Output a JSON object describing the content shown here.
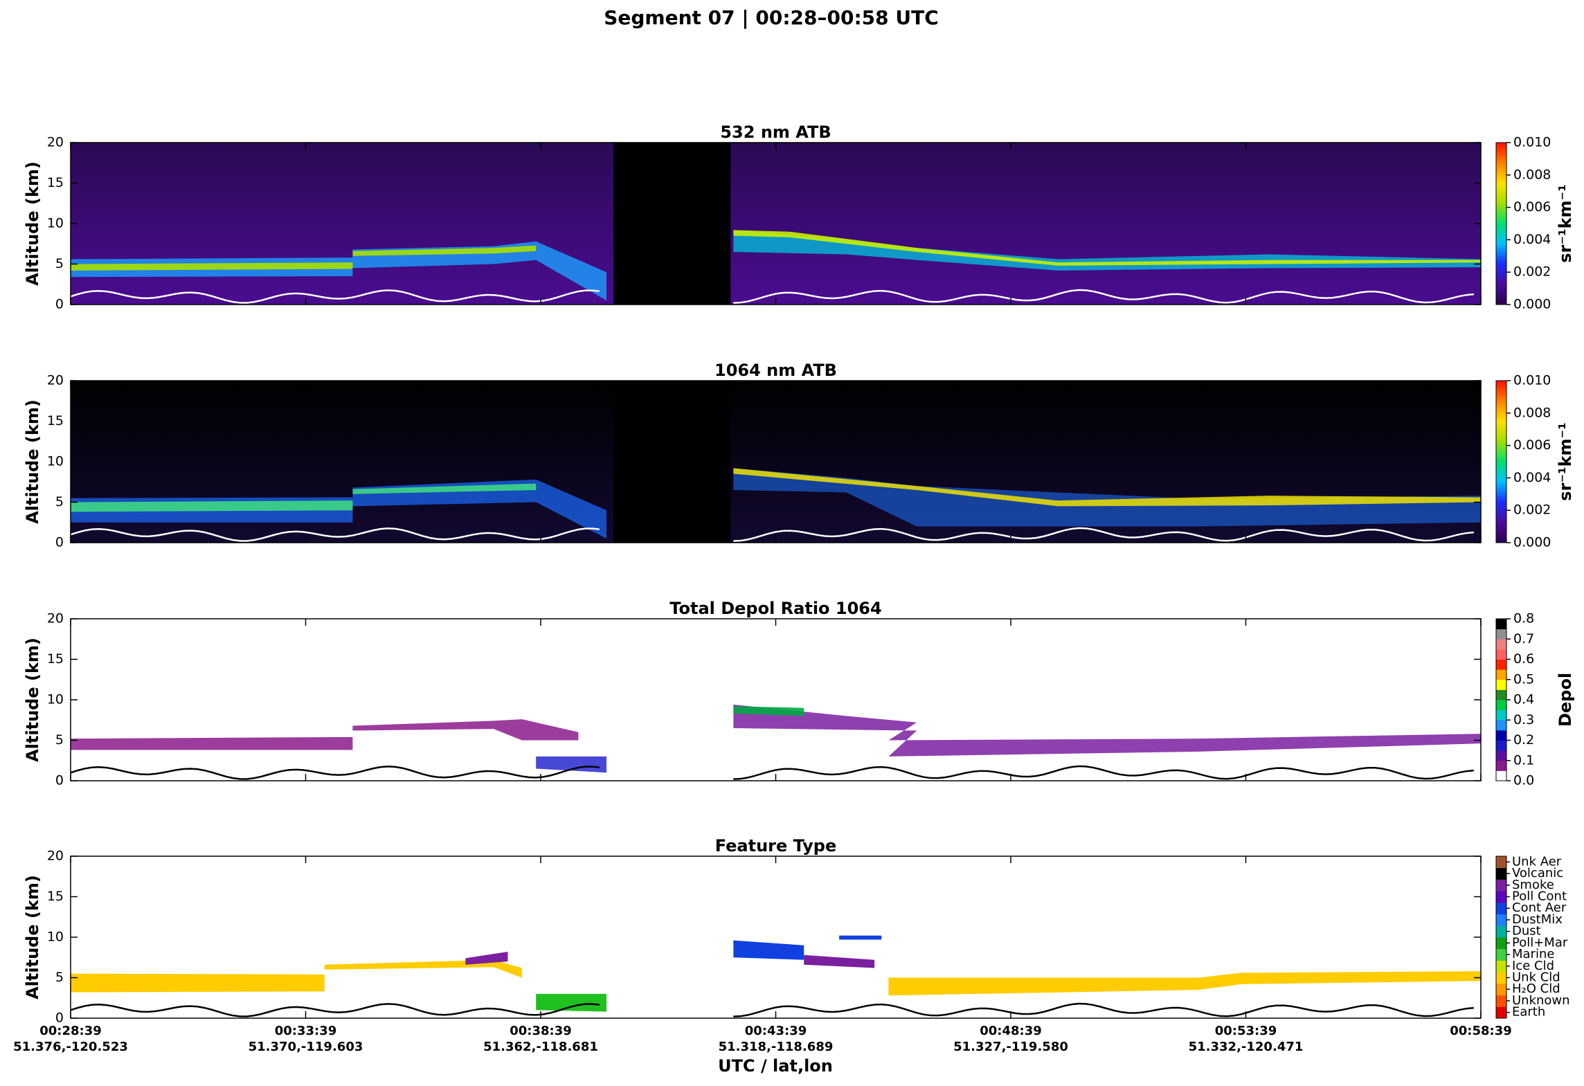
{
  "title": "Segment 07  |  00:28–00:58 UTC",
  "x_axis_label": "UTC / lat,lon",
  "x_tick_labels": [
    {
      "time": "00:28:39",
      "latlon": "51.376,-120.523"
    },
    {
      "time": "00:33:39",
      "latlon": "51.370,-119.603"
    },
    {
      "time": "00:38:39",
      "latlon": "51.362,-118.681"
    },
    {
      "time": "00:43:39",
      "latlon": "51.318,-118.689"
    },
    {
      "time": "00:48:39",
      "latlon": "51.327,-119.580"
    },
    {
      "time": "00:53:39",
      "latlon": "51.332,-120.471"
    },
    {
      "time": "00:58:39",
      "latlon": ""
    }
  ],
  "chart_data": [
    {
      "type": "heatmap",
      "title": "532 nm ATB",
      "y_label": "Altitude (km)",
      "ylim": [
        0,
        20
      ],
      "yticks": [
        0,
        5,
        10,
        15,
        20
      ],
      "colorbar": {
        "kind": "continuous",
        "label": "sr⁻¹km⁻¹",
        "lim": [
          0,
          0.01
        ],
        "ticks": [
          {
            "value": 0,
            "label": "0.000"
          },
          {
            "value": 0.002,
            "label": "0.002"
          },
          {
            "value": 0.004,
            "label": "0.004"
          },
          {
            "value": 0.006,
            "label": "0.006"
          },
          {
            "value": 0.008,
            "label": "0.008"
          },
          {
            "value": 0.01,
            "label": "0.010"
          }
        ],
        "colors": [
          "#2a0050",
          "#4b0a9c",
          "#1a2cff",
          "#00bfff",
          "#00e070",
          "#a0e000",
          "#ffe000",
          "#ff8000",
          "#ff1000"
        ]
      }
    },
    {
      "type": "heatmap",
      "title": "1064 nm ATB",
      "y_label": "Altitude (km)",
      "ylim": [
        0,
        20
      ],
      "yticks": [
        0,
        5,
        10,
        15,
        20
      ],
      "colorbar": {
        "kind": "continuous",
        "label": "sr⁻¹km⁻¹",
        "lim": [
          0,
          0.01
        ],
        "ticks": [
          {
            "value": 0,
            "label": "0.000"
          },
          {
            "value": 0.002,
            "label": "0.002"
          },
          {
            "value": 0.004,
            "label": "0.004"
          },
          {
            "value": 0.006,
            "label": "0.006"
          },
          {
            "value": 0.008,
            "label": "0.008"
          },
          {
            "value": 0.01,
            "label": "0.010"
          }
        ],
        "colors": [
          "#2a0050",
          "#4b0a9c",
          "#1a2cff",
          "#00bfff",
          "#00e070",
          "#a0e000",
          "#ffe000",
          "#ff8000",
          "#ff1000"
        ]
      }
    },
    {
      "type": "heatmap",
      "title": "Total Depol Ratio 1064",
      "y_label": "Altitude (km)",
      "ylim": [
        0,
        20
      ],
      "yticks": [
        0,
        5,
        10,
        15,
        20
      ],
      "colorbar": {
        "kind": "discrete",
        "label": "Depol",
        "lim": [
          0,
          0.8
        ],
        "ticks": [
          {
            "value": 0,
            "label": "0.0"
          },
          0.1,
          0.2,
          0.3,
          0.4,
          0.5,
          0.6,
          0.7,
          0.8
        ],
        "colors": [
          "#ffffff",
          "#8b1a8b",
          "#5a0fa0",
          "#1a1acd",
          "#0000aa",
          "#1e90ff",
          "#00c8c8",
          "#00cc44",
          "#228b22",
          "#ffff00",
          "#ffa500",
          "#ff2200",
          "#ff6060",
          "#f08080",
          "#909090",
          "#000000"
        ]
      }
    },
    {
      "type": "heatmap",
      "title": "Feature Type",
      "y_label": "Altitude (km)",
      "ylim": [
        0,
        20
      ],
      "yticks": [
        0,
        5,
        10,
        15,
        20
      ],
      "colorbar": {
        "kind": "categorical",
        "categories": [
          "Unk Aer",
          "Volcanic",
          "Smoke",
          "Poll Cont",
          "Cont Aer",
          "DustMix",
          "Dust",
          "Poll+Mar",
          "Marine",
          "Ice Cld",
          "Unk Cld",
          "H₂O Cld",
          "Unknown",
          "Earth"
        ],
        "colors": [
          "#e00000",
          "#ff5000",
          "#ff9900",
          "#ffcc00",
          "#c8e000",
          "#40d040",
          "#10a010",
          "#00b0a0",
          "#2080ff",
          "#1040e0",
          "#6000c0",
          "#7a1fa0",
          "#000000",
          "#a0522d"
        ]
      }
    }
  ]
}
